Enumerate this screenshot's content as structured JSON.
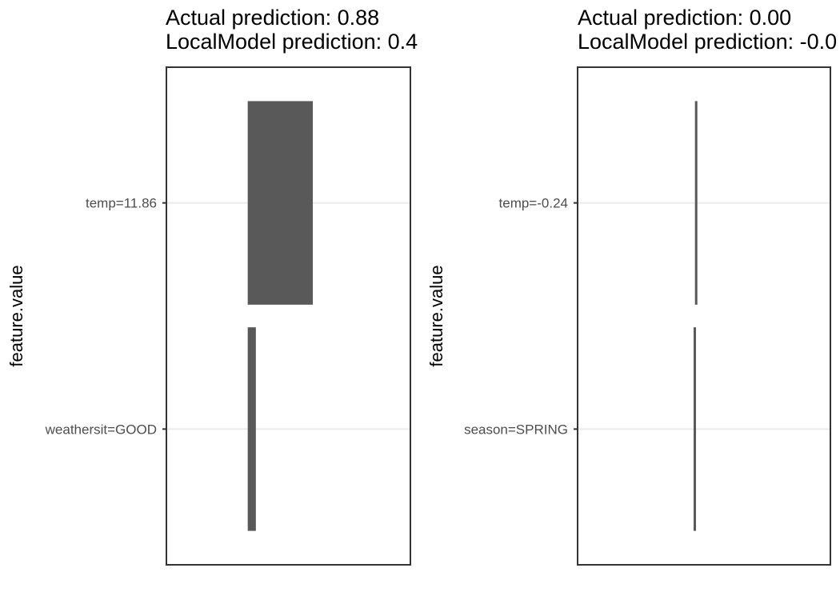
{
  "chart_data": [
    {
      "type": "bar",
      "orientation": "horizontal",
      "title_line1": "Actual prediction: 0.88",
      "title_line2": "LocalModel prediction: 0.4",
      "xlabel": "",
      "ylabel": "feature.value",
      "categories": [
        "temp=11.86",
        "weathersit=GOOD"
      ],
      "values": [
        0.32,
        0.04
      ],
      "xlim": [
        -0.4,
        0.8
      ],
      "x_ticks_shown": false,
      "grid": "horizontal major lines",
      "bar_color": "#595959",
      "gridline_color": "#ebebeb",
      "panel_border_color": "#333333"
    },
    {
      "type": "bar",
      "orientation": "horizontal",
      "title_line1": "Actual prediction: 0.00",
      "title_line2": "LocalModel prediction: -0.0",
      "xlabel": "",
      "ylabel": "feature.value",
      "categories": [
        "temp=-0.24",
        "season=SPRING"
      ],
      "values": [
        0.003,
        -0.007
      ],
      "xlim": [
        -0.43,
        0.49
      ],
      "x_ticks_shown": false,
      "grid": "horizontal major lines",
      "bar_color": "#595959",
      "gridline_color": "#ebebeb",
      "panel_border_color": "#333333"
    }
  ]
}
